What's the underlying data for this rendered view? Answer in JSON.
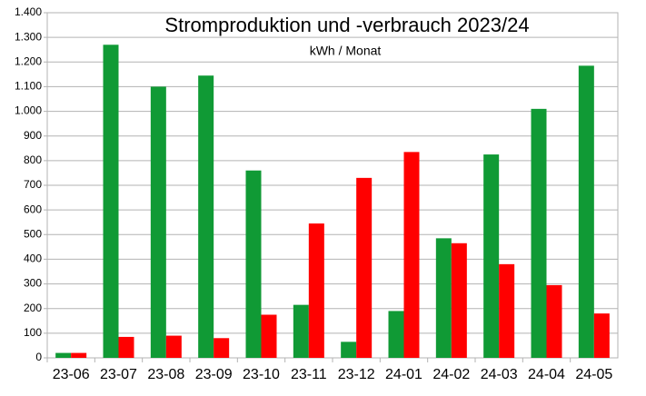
{
  "chart_data": {
    "type": "bar",
    "title": "Stromproduktion und -verbrauch 2023/24",
    "subtitle": "kWh / Monat",
    "categories": [
      "23-06",
      "23-07",
      "23-08",
      "23-09",
      "23-10",
      "23-11",
      "23-12",
      "24-01",
      "24-02",
      "24-03",
      "24-04",
      "24-05"
    ],
    "series": [
      {
        "color": "#109a35",
        "values": [
          20,
          1270,
          1100,
          1145,
          760,
          215,
          65,
          190,
          485,
          825,
          1010,
          1185
        ]
      },
      {
        "color": "#ff0000",
        "values": [
          20,
          85,
          90,
          80,
          175,
          545,
          730,
          835,
          465,
          380,
          295,
          180
        ]
      }
    ],
    "ylim": [
      0,
      1400
    ],
    "yticks": [
      0,
      100,
      200,
      300,
      400,
      500,
      600,
      700,
      800,
      900,
      {
        "value": 1000,
        "label": "1.000"
      },
      {
        "value": 1100,
        "label": "1.100"
      },
      {
        "value": 1200,
        "label": "1.200"
      },
      {
        "value": 1300,
        "label": "1.300"
      },
      {
        "value": 1400,
        "label": "1.400"
      }
    ],
    "grid": true
  }
}
